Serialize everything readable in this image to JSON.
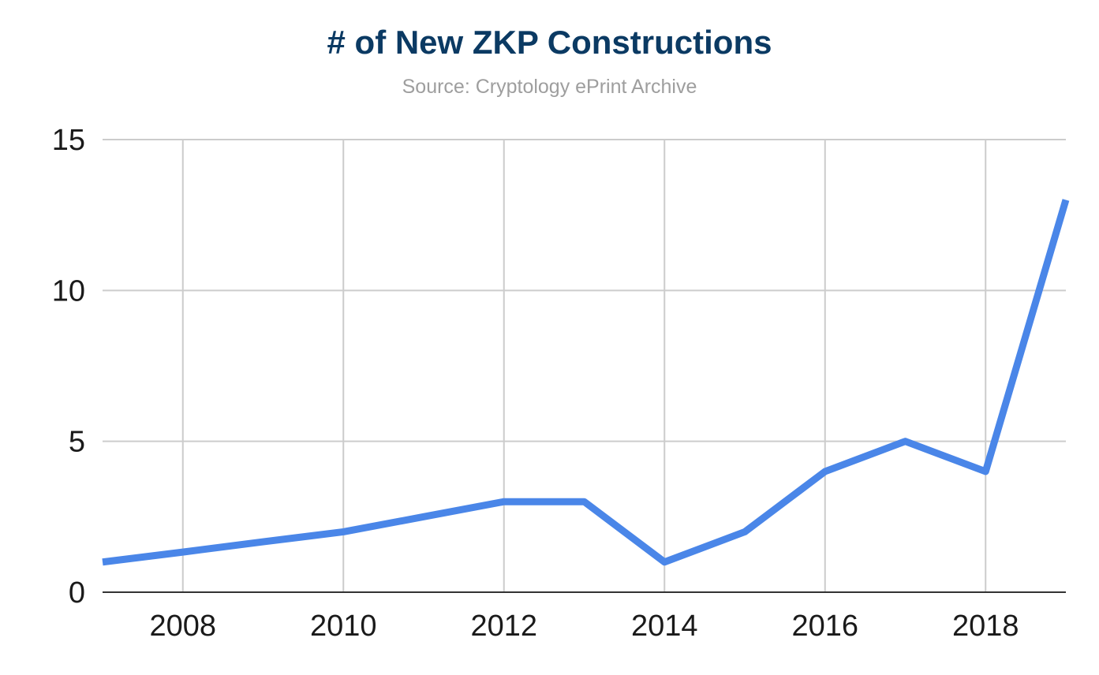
{
  "chart_data": {
    "type": "line",
    "title": "# of New ZKP Constructions",
    "subtitle": "Source: Cryptology ePrint Archive",
    "xlabel": "",
    "ylabel": "",
    "x": [
      2007,
      2008,
      2009,
      2010,
      2011,
      2012,
      2013,
      2014,
      2015,
      2016,
      2017,
      2018,
      2019
    ],
    "series": [
      {
        "values": [
          1,
          1.33,
          1.67,
          2,
          2.5,
          3,
          3,
          1,
          2,
          4,
          5,
          4,
          13
        ]
      }
    ],
    "xlim": [
      2007,
      2019
    ],
    "ylim": [
      0,
      15
    ],
    "x_ticks": [
      "2008",
      "2010",
      "2012",
      "2014",
      "2016",
      "2018"
    ],
    "y_ticks": [
      "0",
      "5",
      "10",
      "15"
    ],
    "grid": true,
    "line_color": "#4a86e8",
    "grid_color": "#cccccc",
    "axis_color": "#333333"
  }
}
